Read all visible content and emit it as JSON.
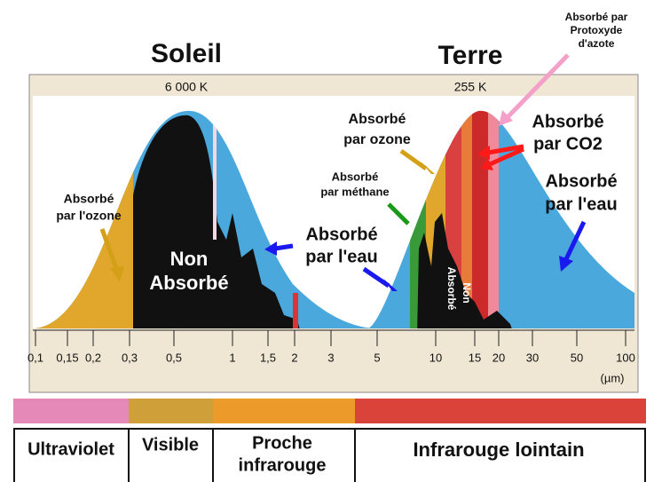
{
  "titles": {
    "sun": "Soleil",
    "earth": "Terre"
  },
  "temperatures": {
    "sun": "6 000 K",
    "earth": "255 K"
  },
  "annotations": {
    "sun_ozone": [
      "Absorbé",
      "par l'ozone"
    ],
    "sun_not_absorbed": [
      "Non",
      "Absorbé"
    ],
    "sun_water": [
      "Absorbé",
      "par l'eau"
    ],
    "earth_ozone": [
      "Absorbé",
      "par ozone"
    ],
    "earth_methane": [
      "Absorbé",
      "par méthane"
    ],
    "earth_not_absorbed": [
      "Non",
      "Absorbé"
    ],
    "earth_co2": [
      "Absorbé",
      "par CO2"
    ],
    "earth_water": [
      "Absorbé",
      "par l'eau"
    ],
    "nitrous_oxide": [
      "Absorbé par",
      "Protoxyde",
      "d'azote"
    ]
  },
  "axis": {
    "ticks": [
      "0,1",
      "0,15",
      "0,2",
      "0,3",
      "0,5",
      "1",
      "1,5",
      "2",
      "3",
      "5",
      "10",
      "15",
      "20",
      "30",
      "50",
      "100"
    ],
    "unit": "(µm)"
  },
  "bands": [
    [
      "Ultraviolet"
    ],
    [
      "Visible"
    ],
    [
      "Proche",
      "infrarouge"
    ],
    [
      "Infrarouge lointain"
    ]
  ]
}
